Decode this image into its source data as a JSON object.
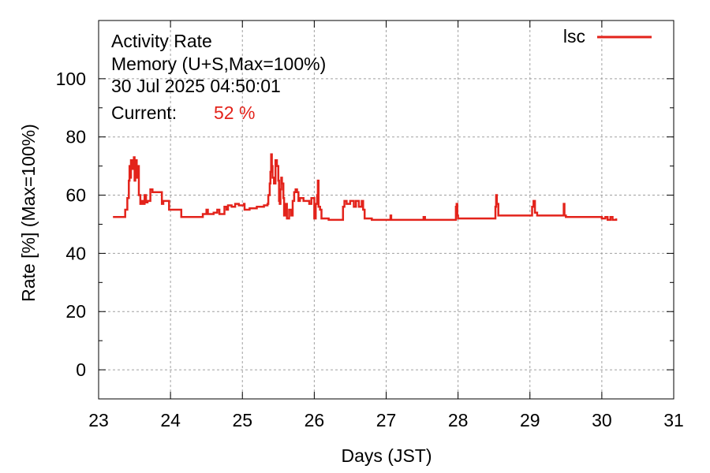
{
  "chart_data": {
    "type": "line",
    "title_lines": [
      "Activity Rate",
      "Memory (U+S,Max=100%)",
      "30 Jul 2025 04:50:01"
    ],
    "current_label": "Current:",
    "current_value": "52 %",
    "xlabel": "Days (JST)",
    "ylabel": "Rate [%]  (Max=100%)",
    "xlim": [
      23,
      31
    ],
    "ylim": [
      -10,
      120
    ],
    "xticks": [
      23,
      24,
      25,
      26,
      27,
      28,
      29,
      30,
      31
    ],
    "yticks": [
      0,
      20,
      40,
      60,
      80,
      100
    ],
    "grid": true,
    "legend_position": "top-right",
    "series": [
      {
        "name": "lsc",
        "color": "#e3231b",
        "points": [
          [
            23.2,
            52.5
          ],
          [
            23.36,
            52.5
          ],
          [
            23.37,
            55
          ],
          [
            23.4,
            59
          ],
          [
            23.42,
            65
          ],
          [
            23.43,
            70
          ],
          [
            23.44,
            66
          ],
          [
            23.45,
            72
          ],
          [
            23.47,
            69
          ],
          [
            23.49,
            73
          ],
          [
            23.5,
            65
          ],
          [
            23.51,
            72
          ],
          [
            23.53,
            66
          ],
          [
            23.55,
            70
          ],
          [
            23.56,
            60
          ],
          [
            23.58,
            57
          ],
          [
            23.6,
            58
          ],
          [
            23.62,
            57
          ],
          [
            23.64,
            60
          ],
          [
            23.66,
            57.5
          ],
          [
            23.68,
            58
          ],
          [
            23.7,
            58
          ],
          [
            23.72,
            62
          ],
          [
            23.75,
            61
          ],
          [
            23.85,
            61
          ],
          [
            23.88,
            57
          ],
          [
            23.9,
            58
          ],
          [
            23.95,
            58
          ],
          [
            23.98,
            55
          ],
          [
            24.05,
            55
          ],
          [
            24.15,
            52.5
          ],
          [
            24.4,
            52.5
          ],
          [
            24.45,
            53.5
          ],
          [
            24.5,
            55
          ],
          [
            24.52,
            53.5
          ],
          [
            24.6,
            54
          ],
          [
            24.65,
            55
          ],
          [
            24.68,
            53.5
          ],
          [
            24.75,
            56
          ],
          [
            24.78,
            55
          ],
          [
            24.8,
            56.5
          ],
          [
            24.85,
            56
          ],
          [
            24.9,
            57
          ],
          [
            24.95,
            56.5
          ],
          [
            25.02,
            57
          ],
          [
            25.03,
            55
          ],
          [
            25.1,
            55.5
          ],
          [
            25.2,
            56
          ],
          [
            25.3,
            56.5
          ],
          [
            25.35,
            57
          ],
          [
            25.36,
            60
          ],
          [
            25.38,
            64
          ],
          [
            25.39,
            68
          ],
          [
            25.4,
            74
          ],
          [
            25.41,
            70
          ],
          [
            25.42,
            66
          ],
          [
            25.44,
            64
          ],
          [
            25.46,
            72
          ],
          [
            25.48,
            70
          ],
          [
            25.5,
            65
          ],
          [
            25.51,
            58
          ],
          [
            25.52,
            57
          ],
          [
            25.53,
            62
          ],
          [
            25.54,
            66
          ],
          [
            25.55,
            64
          ],
          [
            25.57,
            59
          ],
          [
            25.58,
            53
          ],
          [
            25.6,
            57
          ],
          [
            25.62,
            52
          ],
          [
            25.65,
            55
          ],
          [
            25.68,
            53
          ],
          [
            25.7,
            58
          ],
          [
            25.72,
            61
          ],
          [
            25.74,
            62
          ],
          [
            25.76,
            61
          ],
          [
            25.78,
            58
          ],
          [
            25.8,
            59
          ],
          [
            25.85,
            58
          ],
          [
            25.9,
            58
          ],
          [
            25.93,
            57
          ],
          [
            25.96,
            59
          ],
          [
            26.0,
            52
          ],
          [
            26.02,
            57
          ],
          [
            26.04,
            60
          ],
          [
            26.05,
            65
          ],
          [
            26.06,
            56
          ],
          [
            26.08,
            55
          ],
          [
            26.1,
            52
          ],
          [
            26.2,
            51.5
          ],
          [
            26.38,
            51.5
          ],
          [
            26.4,
            56
          ],
          [
            26.42,
            58
          ],
          [
            26.45,
            57
          ],
          [
            26.5,
            58
          ],
          [
            26.55,
            56
          ],
          [
            26.58,
            58
          ],
          [
            26.62,
            56
          ],
          [
            26.66,
            58
          ],
          [
            26.68,
            55
          ],
          [
            26.7,
            52
          ],
          [
            26.78,
            52
          ],
          [
            26.8,
            51.5
          ],
          [
            27.0,
            51.5
          ],
          [
            27.05,
            51.5
          ],
          [
            27.06,
            53
          ],
          [
            27.07,
            51.5
          ],
          [
            27.5,
            51.5
          ],
          [
            27.52,
            52.5
          ],
          [
            27.54,
            51.5
          ],
          [
            27.95,
            51.5
          ],
          [
            27.97,
            56
          ],
          [
            27.98,
            57
          ],
          [
            27.99,
            53
          ],
          [
            28.0,
            52
          ],
          [
            28.3,
            52
          ],
          [
            28.5,
            52
          ],
          [
            28.52,
            56
          ],
          [
            28.53,
            60
          ],
          [
            28.54,
            57
          ],
          [
            28.56,
            53
          ],
          [
            28.6,
            53
          ],
          [
            29.0,
            53
          ],
          [
            29.03,
            56
          ],
          [
            29.05,
            58
          ],
          [
            29.07,
            54
          ],
          [
            29.1,
            53
          ],
          [
            29.4,
            53
          ],
          [
            29.46,
            53
          ],
          [
            29.47,
            57
          ],
          [
            29.48,
            53
          ],
          [
            29.5,
            52.5
          ],
          [
            29.7,
            52.5
          ],
          [
            29.9,
            52.5
          ],
          [
            30.0,
            52
          ],
          [
            30.05,
            52.5
          ],
          [
            30.08,
            51.5
          ],
          [
            30.12,
            52.5
          ],
          [
            30.15,
            51.5
          ],
          [
            30.2,
            52
          ]
        ]
      }
    ]
  }
}
